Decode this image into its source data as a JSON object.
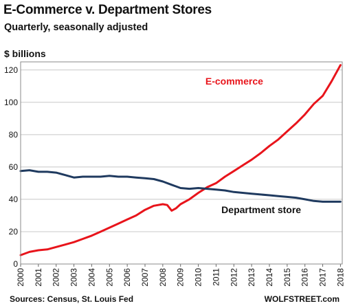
{
  "chart_data": {
    "type": "line",
    "title": "E-Commerce v. Department Stores",
    "subtitle": "Quarterly, seasonally adjusted",
    "ylabel": "$ billions",
    "xlabel": "",
    "ylim": [
      0,
      125
    ],
    "xlim": [
      2000,
      2018.1
    ],
    "yticks": [
      0,
      20,
      40,
      60,
      80,
      100,
      120
    ],
    "xticks": [
      "2000",
      "2001",
      "2002",
      "2003",
      "2004",
      "2005",
      "2006",
      "2007",
      "2008",
      "2009",
      "2010",
      "2011",
      "2012",
      "2013",
      "2014",
      "2015",
      "2016",
      "2017",
      "2018"
    ],
    "grid": true,
    "source": "Sources: Census, St. Louis Fed",
    "brand": "WOLFSTREET.com",
    "series": [
      {
        "name": "E-commerce",
        "color": "#e8141b",
        "x": [
          2000.0,
          2000.5,
          2001.0,
          2001.5,
          2002.0,
          2002.5,
          2003.0,
          2003.5,
          2004.0,
          2004.5,
          2005.0,
          2005.5,
          2006.0,
          2006.5,
          2007.0,
          2007.5,
          2008.0,
          2008.25,
          2008.5,
          2008.75,
          2009.0,
          2009.5,
          2010.0,
          2010.5,
          2011.0,
          2011.5,
          2012.0,
          2012.5,
          2013.0,
          2013.5,
          2014.0,
          2014.5,
          2015.0,
          2015.5,
          2016.0,
          2016.5,
          2017.0,
          2017.5,
          2018.0
        ],
        "values": [
          5.5,
          7.5,
          8.5,
          9.0,
          10.5,
          12.0,
          13.5,
          15.5,
          17.5,
          20.0,
          22.5,
          25.0,
          27.5,
          30.0,
          33.5,
          36.0,
          37.0,
          36.5,
          33.0,
          34.5,
          37.0,
          40.0,
          44.0,
          47.5,
          50.0,
          54.0,
          57.5,
          61.0,
          64.5,
          68.5,
          73.0,
          77.0,
          82.0,
          87.0,
          92.5,
          99.0,
          104.0,
          113.0,
          123.0
        ]
      },
      {
        "name": "Department store",
        "color": "#1f3a5f",
        "x": [
          2000.0,
          2000.5,
          2001.0,
          2001.5,
          2002.0,
          2002.5,
          2003.0,
          2003.5,
          2004.0,
          2004.5,
          2005.0,
          2005.5,
          2006.0,
          2006.5,
          2007.0,
          2007.5,
          2008.0,
          2008.5,
          2009.0,
          2009.5,
          2010.0,
          2010.5,
          2011.0,
          2011.5,
          2012.0,
          2012.5,
          2013.0,
          2013.5,
          2014.0,
          2014.5,
          2015.0,
          2015.5,
          2016.0,
          2016.5,
          2017.0,
          2017.5,
          2018.0
        ],
        "values": [
          57.5,
          58.0,
          57.0,
          57.0,
          56.5,
          55.0,
          53.5,
          54.0,
          54.0,
          54.0,
          54.5,
          54.0,
          54.0,
          53.5,
          53.0,
          52.5,
          51.0,
          49.0,
          47.0,
          46.5,
          47.0,
          46.5,
          46.0,
          45.5,
          44.5,
          44.0,
          43.5,
          43.0,
          42.5,
          42.0,
          41.5,
          41.0,
          40.0,
          39.0,
          38.5,
          38.5,
          38.5
        ]
      }
    ]
  }
}
